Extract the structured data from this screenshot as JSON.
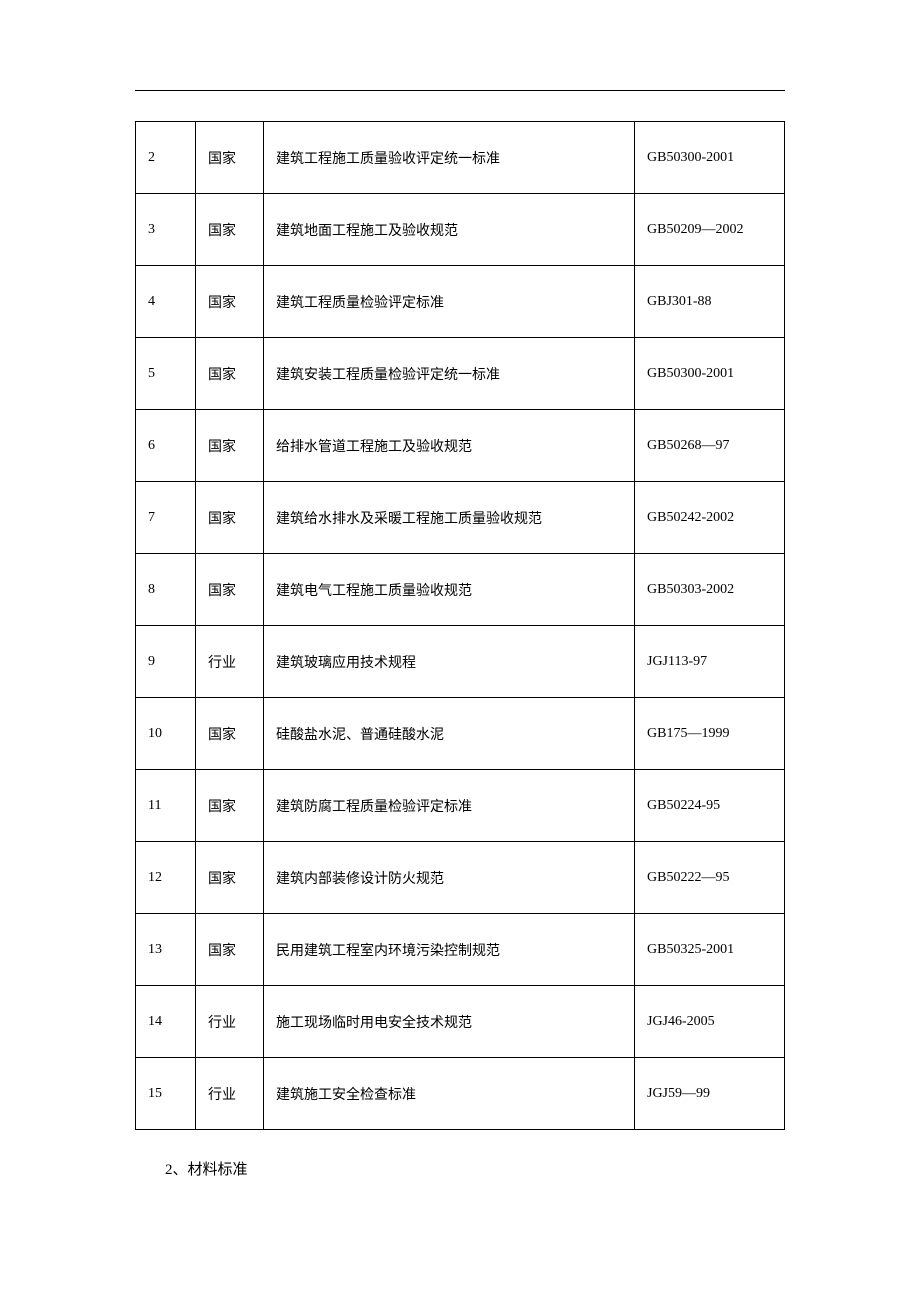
{
  "table": {
    "rows": [
      {
        "num": "2",
        "level": "国家",
        "name": "建筑工程施工质量验收评定统一标准",
        "code": "GB50300-2001"
      },
      {
        "num": "3",
        "level": "国家",
        "name": "建筑地面工程施工及验收规范",
        "code": "GB50209—2002"
      },
      {
        "num": "4",
        "level": "国家",
        "name": "建筑工程质量检验评定标准",
        "code": "GBJ301-88"
      },
      {
        "num": "5",
        "level": "国家",
        "name": "建筑安装工程质量检验评定统一标准",
        "code": "GB50300-2001"
      },
      {
        "num": "6",
        "level": "国家",
        "name": "给排水管道工程施工及验收规范",
        "code": "GB50268—97"
      },
      {
        "num": "7",
        "level": "国家",
        "name": "建筑给水排水及采暖工程施工质量验收规范",
        "code": "GB50242-2002"
      },
      {
        "num": "8",
        "level": "国家",
        "name": "建筑电气工程施工质量验收规范",
        "code": "GB50303-2002"
      },
      {
        "num": "9",
        "level": "行业",
        "name": "建筑玻璃应用技术规程",
        "code": "JGJ113-97"
      },
      {
        "num": "10",
        "level": "国家",
        "name": "硅酸盐水泥、普通硅酸水泥",
        "code": "GB175—1999"
      },
      {
        "num": "11",
        "level": "国家",
        "name": "建筑防腐工程质量检验评定标准",
        "code": "GB50224-95"
      },
      {
        "num": "12",
        "level": "国家",
        "name": "建筑内部装修设计防火规范",
        "code": "GB50222—95"
      },
      {
        "num": "13",
        "level": "国家",
        "name": "民用建筑工程室内环境污染控制规范",
        "code": "GB50325-2001"
      },
      {
        "num": "14",
        "level": "行业",
        "name": "施工现场临时用电安全技术规范",
        "code": "JGJ46-2005"
      },
      {
        "num": "15",
        "level": "行业",
        "name": "建筑施工安全检查标准",
        "code": "JGJ59—99"
      }
    ]
  },
  "section_heading": "2、材料标准"
}
